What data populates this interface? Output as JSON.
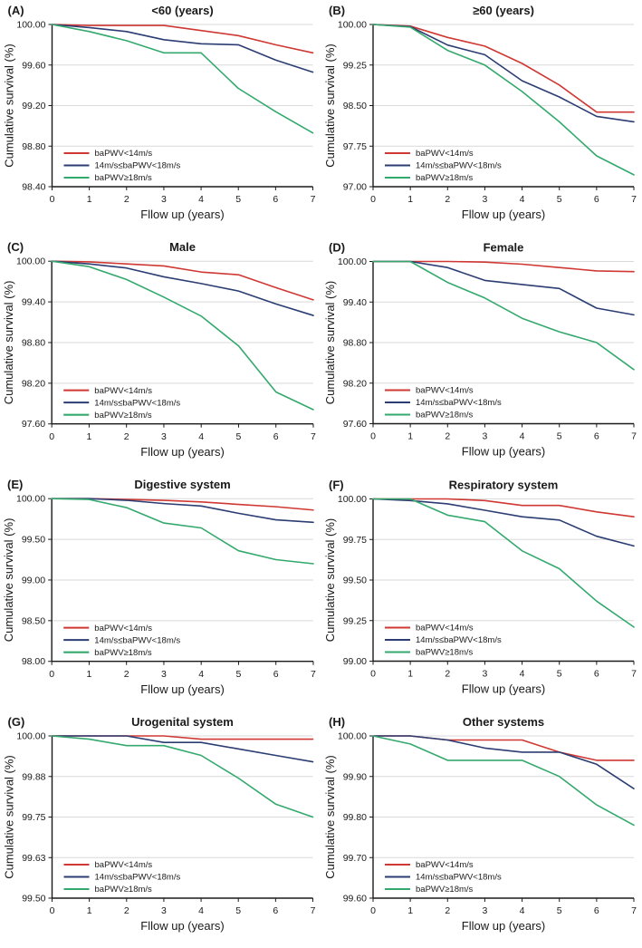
{
  "figure": {
    "x_axis_label": "Fllow up (years)",
    "y_axis_label": "Cumulative  survival (%)",
    "colors": {
      "red": "#cf3833",
      "blue": "#2b3d72",
      "green": "#34a96d",
      "grid": "#d9d9d9",
      "axis": "#1a1a1a",
      "background": "#ffffff"
    },
    "series_labels": [
      "baPWV<14m/s",
      "14m/s≤baPWV<18m/s",
      "baPWV≥18m/s"
    ]
  },
  "chart_data": [
    {
      "type": "line",
      "panel": "(A)",
      "title": "<60 (years)",
      "xlabel": "Fllow up (years)",
      "ylabel": "Cumulative  survival (%)",
      "x": [
        0,
        1,
        2,
        3,
        4,
        5,
        6,
        7
      ],
      "xlim": [
        0,
        7
      ],
      "xtick_labels": [
        "0",
        "1",
        "2",
        "3",
        "4",
        "5",
        "6",
        "7"
      ],
      "ylim": [
        98.4,
        100.0
      ],
      "yticks": [
        98.4,
        98.8,
        99.2,
        99.6,
        100.0
      ],
      "ytick_labels": [
        "98.40",
        "98.80",
        "99.20",
        "99.60",
        "100.00"
      ],
      "grid": true,
      "legend_position": "lower left",
      "series": [
        {
          "key": "bapwv-lt-14",
          "name": "baPWV<14m/s",
          "color": "#cf3833",
          "values": [
            100.0,
            99.99,
            99.99,
            99.99,
            99.94,
            99.89,
            99.8,
            99.72
          ]
        },
        {
          "key": "bapwv-14-18",
          "name": "14m/s≤baPWV<18m/s",
          "color": "#2b3d72",
          "values": [
            100.0,
            99.97,
            99.93,
            99.85,
            99.81,
            99.8,
            99.65,
            99.53
          ]
        },
        {
          "key": "bapwv-ge-18",
          "name": "baPWV≥18m/s",
          "color": "#34a96d",
          "values": [
            100.0,
            99.93,
            99.84,
            99.72,
            99.72,
            99.37,
            99.14,
            98.93
          ]
        }
      ]
    },
    {
      "type": "line",
      "panel": "(B)",
      "title": "≥60 (years)",
      "xlabel": "Fllow up (years)",
      "ylabel": "Cumulative  survival (%)",
      "x": [
        0,
        1,
        2,
        3,
        4,
        5,
        6,
        7
      ],
      "xlim": [
        0,
        7
      ],
      "xtick_labels": [
        "0",
        "1",
        "2",
        "3",
        "4",
        "5",
        "6",
        "7"
      ],
      "ylim": [
        97.0,
        100.0
      ],
      "yticks": [
        97.0,
        97.75,
        98.5,
        99.25,
        100.0
      ],
      "ytick_labels": [
        "97.00",
        "97.75",
        "98.50",
        "99.25",
        "100.00"
      ],
      "grid": true,
      "legend_position": "lower left",
      "series": [
        {
          "key": "bapwv-lt-14",
          "name": "baPWV<14m/s",
          "color": "#cf3833",
          "values": [
            100.0,
            99.97,
            99.76,
            99.6,
            99.28,
            98.88,
            98.38,
            98.38
          ]
        },
        {
          "key": "bapwv-14-18",
          "name": "14m/s≤baPWV<18m/s",
          "color": "#2b3d72",
          "values": [
            100.0,
            99.96,
            99.62,
            99.44,
            98.96,
            98.66,
            98.3,
            98.2
          ]
        },
        {
          "key": "bapwv-ge-18",
          "name": "baPWV≥18m/s",
          "color": "#34a96d",
          "values": [
            100.0,
            99.95,
            99.52,
            99.25,
            98.76,
            98.2,
            97.57,
            97.22
          ]
        }
      ]
    },
    {
      "type": "line",
      "panel": "(C)",
      "title": "Male",
      "xlabel": "Fllow up (years)",
      "ylabel": "Cumulative  survival (%)",
      "x": [
        0,
        1,
        2,
        3,
        4,
        5,
        6,
        7
      ],
      "xlim": [
        0,
        7
      ],
      "xtick_labels": [
        "0",
        "1",
        "2",
        "3",
        "4",
        "5",
        "6",
        "7"
      ],
      "ylim": [
        97.6,
        100.0
      ],
      "yticks": [
        97.6,
        98.2,
        98.8,
        99.4,
        100.0
      ],
      "ytick_labels": [
        "97.60",
        "98.20",
        "98.80",
        "99.40",
        "100.00"
      ],
      "grid": true,
      "legend_position": "lower left",
      "series": [
        {
          "key": "bapwv-lt-14",
          "name": "baPWV<14m/s",
          "color": "#cf3833",
          "values": [
            100.0,
            99.99,
            99.96,
            99.93,
            99.84,
            99.8,
            99.61,
            99.43
          ]
        },
        {
          "key": "bapwv-14-18",
          "name": "14m/s≤baPWV<18m/s",
          "color": "#2b3d72",
          "values": [
            100.0,
            99.96,
            99.9,
            99.77,
            99.67,
            99.56,
            99.37,
            99.2
          ]
        },
        {
          "key": "bapwv-ge-18",
          "name": "baPWV≥18m/s",
          "color": "#34a96d",
          "values": [
            100.0,
            99.92,
            99.73,
            99.47,
            99.19,
            98.75,
            98.07,
            97.81
          ]
        }
      ]
    },
    {
      "type": "line",
      "panel": "(D)",
      "title": "Female",
      "xlabel": "Fllow up (years)",
      "ylabel": "Cumulative  survival (%)",
      "x": [
        0,
        1,
        2,
        3,
        4,
        5,
        6,
        7
      ],
      "xlim": [
        0,
        7
      ],
      "xtick_labels": [
        "0",
        "1",
        "2",
        "3",
        "4",
        "5",
        "6",
        "7"
      ],
      "ylim": [
        97.6,
        100.0
      ],
      "yticks": [
        97.6,
        98.2,
        98.8,
        99.4,
        100.0
      ],
      "ytick_labels": [
        "97.60",
        "98.20",
        "98.80",
        "99.40",
        "100.00"
      ],
      "grid": true,
      "legend_position": "lower left",
      "series": [
        {
          "key": "bapwv-lt-14",
          "name": "baPWV<14m/s",
          "color": "#cf3833",
          "values": [
            100.0,
            100.0,
            100.0,
            99.99,
            99.96,
            99.91,
            99.86,
            99.85
          ]
        },
        {
          "key": "bapwv-14-18",
          "name": "14m/s≤baPWV<18m/s",
          "color": "#2b3d72",
          "values": [
            100.0,
            100.0,
            99.91,
            99.72,
            99.66,
            99.6,
            99.31,
            99.21
          ]
        },
        {
          "key": "bapwv-ge-18",
          "name": "baPWV≥18m/s",
          "color": "#34a96d",
          "values": [
            100.0,
            100.0,
            99.69,
            99.46,
            99.16,
            98.96,
            98.8,
            98.4
          ]
        }
      ]
    },
    {
      "type": "line",
      "panel": "(E)",
      "title": "Digestive system",
      "xlabel": "Fllow up (years)",
      "ylabel": "Cumulative  survival (%)",
      "x": [
        0,
        1,
        2,
        3,
        4,
        5,
        6,
        7
      ],
      "xlim": [
        0,
        7
      ],
      "xtick_labels": [
        "0",
        "1",
        "2",
        "3",
        "4",
        "5",
        "6",
        "7"
      ],
      "ylim": [
        98.0,
        100.0
      ],
      "yticks": [
        98.0,
        98.5,
        99.0,
        99.5,
        100.0
      ],
      "ytick_labels": [
        "98.00",
        "98.50",
        "99.00",
        "99.50",
        "100.00"
      ],
      "grid": true,
      "legend_position": "lower left",
      "series": [
        {
          "key": "bapwv-lt-14",
          "name": "baPWV<14m/s",
          "color": "#cf3833",
          "values": [
            100.0,
            100.0,
            99.99,
            99.98,
            99.96,
            99.93,
            99.9,
            99.86
          ]
        },
        {
          "key": "bapwv-14-18",
          "name": "14m/s≤baPWV<18m/s",
          "color": "#2b3d72",
          "values": [
            100.0,
            100.0,
            99.98,
            99.94,
            99.91,
            99.82,
            99.74,
            99.71
          ]
        },
        {
          "key": "bapwv-ge-18",
          "name": "baPWV≥18m/s",
          "color": "#34a96d",
          "values": [
            100.0,
            99.99,
            99.89,
            99.7,
            99.64,
            99.36,
            99.25,
            99.2
          ]
        }
      ]
    },
    {
      "type": "line",
      "panel": "(F)",
      "title": "Respiratory system",
      "xlabel": "Fllow up (years)",
      "ylabel": "Cumulative  survival (%)",
      "x": [
        0,
        1,
        2,
        3,
        4,
        5,
        6,
        7
      ],
      "xlim": [
        0,
        7
      ],
      "xtick_labels": [
        "0",
        "1",
        "2",
        "3",
        "4",
        "5",
        "6",
        "7"
      ],
      "ylim": [
        99.0,
        100.0
      ],
      "yticks": [
        99.0,
        99.25,
        99.5,
        99.75,
        100.0
      ],
      "ytick_labels": [
        "99.00",
        "99.25",
        "99.50",
        "99.75",
        "100.00"
      ],
      "grid": true,
      "legend_position": "lower left",
      "series": [
        {
          "key": "bapwv-lt-14",
          "name": "baPWV<14m/s",
          "color": "#cf3833",
          "values": [
            100.0,
            100.0,
            100.0,
            99.99,
            99.96,
            99.96,
            99.92,
            99.89
          ]
        },
        {
          "key": "bapwv-14-18",
          "name": "14m/s≤baPWV<18m/s",
          "color": "#2b3d72",
          "values": [
            100.0,
            99.99,
            99.97,
            99.93,
            99.89,
            99.87,
            99.77,
            99.71
          ]
        },
        {
          "key": "bapwv-ge-18",
          "name": "baPWV≥18m/s",
          "color": "#34a96d",
          "values": [
            100.0,
            100.0,
            99.9,
            99.86,
            99.68,
            99.57,
            99.37,
            99.21
          ]
        }
      ]
    },
    {
      "type": "line",
      "panel": "(G)",
      "title": "Urogenital system",
      "xlabel": "Fllow up (years)",
      "ylabel": "Cumulative  survival (%)",
      "x": [
        0,
        1,
        2,
        3,
        4,
        5,
        6,
        7
      ],
      "xlim": [
        0,
        7
      ],
      "xtick_labels": [
        "0",
        "1",
        "2",
        "3",
        "4",
        "5",
        "6",
        "7"
      ],
      "ylim": [
        99.5,
        100.0
      ],
      "yticks": [
        99.5,
        99.625,
        99.75,
        99.875,
        100.0
      ],
      "ytick_labels": [
        "99.50",
        "99.63",
        "99.75",
        "99.88",
        "100.00"
      ],
      "grid": true,
      "legend_position": "lower left",
      "series": [
        {
          "key": "bapwv-lt-14",
          "name": "baPWV<14m/s",
          "color": "#cf3833",
          "values": [
            100.0,
            100.0,
            100.0,
            100.0,
            99.99,
            99.99,
            99.99,
            99.99
          ]
        },
        {
          "key": "bapwv-14-18",
          "name": "14m/s≤baPWV<18m/s",
          "color": "#2b3d72",
          "values": [
            100.0,
            100.0,
            100.0,
            99.98,
            99.98,
            99.96,
            99.94,
            99.92
          ]
        },
        {
          "key": "bapwv-ge-18",
          "name": "baPWV≥18m/s",
          "color": "#34a96d",
          "values": [
            100.0,
            99.99,
            99.97,
            99.97,
            99.94,
            99.87,
            99.79,
            99.75
          ]
        }
      ]
    },
    {
      "type": "line",
      "panel": "(H)",
      "title": "Other systems",
      "xlabel": "Fllow up (years)",
      "ylabel": "Cumulative  survival (%)",
      "x": [
        0,
        1,
        2,
        3,
        4,
        5,
        6,
        7
      ],
      "xlim": [
        0,
        7
      ],
      "xtick_labels": [
        "0",
        "1",
        "2",
        "3",
        "4",
        "5",
        "6",
        "7"
      ],
      "ylim": [
        99.6,
        100.0
      ],
      "yticks": [
        99.6,
        99.7,
        99.8,
        99.9,
        100.0
      ],
      "ytick_labels": [
        "99.60",
        "99.70",
        "99.80",
        "99.90",
        "100.00"
      ],
      "grid": true,
      "legend_position": "lower left",
      "series": [
        {
          "key": "bapwv-lt-14",
          "name": "baPWV<14m/s",
          "color": "#cf3833",
          "values": [
            100.0,
            100.0,
            99.99,
            99.99,
            99.99,
            99.96,
            99.94,
            99.94
          ]
        },
        {
          "key": "bapwv-14-18",
          "name": "14m/s≤baPWV<18m/s",
          "color": "#2b3d72",
          "values": [
            100.0,
            100.0,
            99.99,
            99.97,
            99.96,
            99.96,
            99.93,
            99.87
          ]
        },
        {
          "key": "bapwv-ge-18",
          "name": "baPWV≥18m/s",
          "color": "#34a96d",
          "values": [
            100.0,
            99.98,
            99.94,
            99.94,
            99.94,
            99.9,
            99.83,
            99.78
          ]
        }
      ]
    }
  ]
}
